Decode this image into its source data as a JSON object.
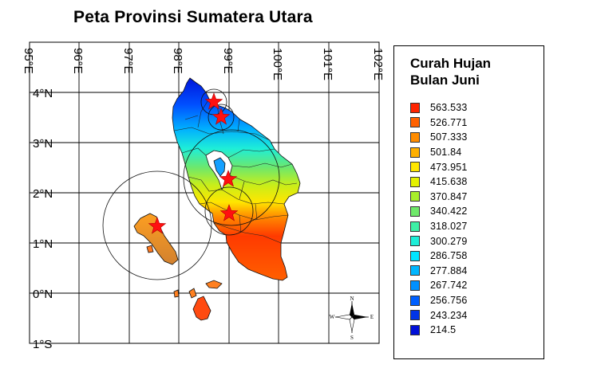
{
  "title": "Peta Provinsi Sumatera Utara",
  "map": {
    "longitude_labels": [
      "95°E",
      "96°E",
      "97°E",
      "98°E",
      "99°E",
      "100°E",
      "101°E",
      "102°E"
    ],
    "latitude_labels": [
      "4°N",
      "3°N",
      "2°N",
      "1°N",
      "0°N",
      "1°S"
    ],
    "compass": {
      "n": "N",
      "s": "S",
      "e": "E",
      "w": "W"
    },
    "stations": [
      "station-1",
      "station-2",
      "station-3",
      "station-4",
      "station-5"
    ]
  },
  "legend": {
    "title_line1": "Curah Hujan",
    "title_line2": "Bulan Juni",
    "items": [
      {
        "label": "563.533",
        "color": "#ff2400"
      },
      {
        "label": "526.771",
        "color": "#ff6100"
      },
      {
        "label": "507.333",
        "color": "#ff8c00"
      },
      {
        "label": "501.84",
        "color": "#ffb000"
      },
      {
        "label": "473.951",
        "color": "#ffe600"
      },
      {
        "label": "415.638",
        "color": "#e4f200"
      },
      {
        "label": "370.847",
        "color": "#a8ee2c"
      },
      {
        "label": "340.422",
        "color": "#6fe86a"
      },
      {
        "label": "318.027",
        "color": "#3ef0a6"
      },
      {
        "label": "300.279",
        "color": "#1eeed8"
      },
      {
        "label": "286.758",
        "color": "#00e4ff"
      },
      {
        "label": "277.884",
        "color": "#00b6ff"
      },
      {
        "label": "267.742",
        "color": "#0090ff"
      },
      {
        "label": "256.756",
        "color": "#0060ff"
      },
      {
        "label": "243.234",
        "color": "#0034e8"
      },
      {
        "label": "214.5",
        "color": "#0010d8"
      }
    ]
  }
}
